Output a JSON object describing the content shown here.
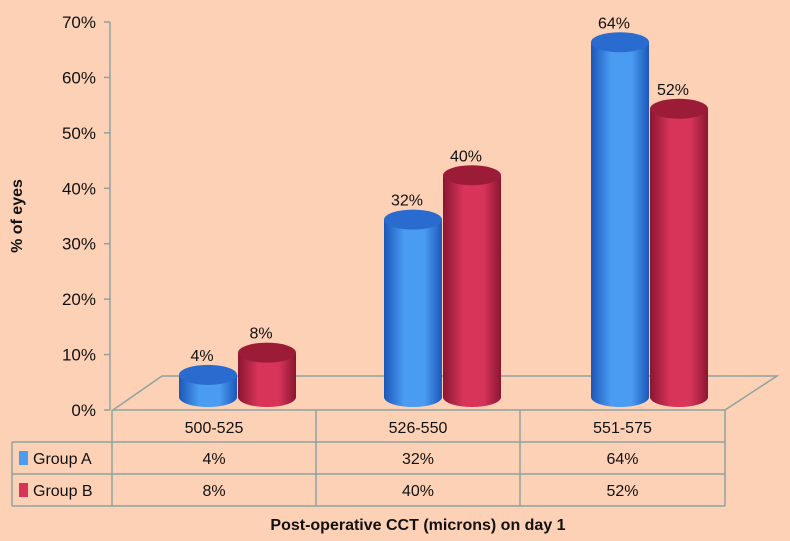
{
  "chart_data": {
    "type": "bar",
    "style": "3d-cylinder-with-data-table",
    "title": "",
    "xlabel": "Post-operative CCT (microns) on day 1",
    "ylabel": "% of eyes",
    "ylim": [
      0,
      70
    ],
    "yticks": [
      "0%",
      "10%",
      "20%",
      "30%",
      "40%",
      "50%",
      "60%",
      "70%"
    ],
    "categories": [
      "500-525",
      "526-550",
      "551-575"
    ],
    "series": [
      {
        "name": "Group A",
        "values": [
          4,
          32,
          64
        ],
        "labels": [
          "4%",
          "32%",
          "64%"
        ],
        "color": "#4a9cf2",
        "top": "#2a6bd0",
        "dark": "#1c57b8"
      },
      {
        "name": "Group B",
        "values": [
          8,
          40,
          52
        ],
        "labels": [
          "8%",
          "40%",
          "52%"
        ],
        "color": "#d8345a",
        "top": "#9c1c38",
        "dark": "#8a1630"
      }
    ],
    "legend": "data-table-left",
    "grid": false
  }
}
